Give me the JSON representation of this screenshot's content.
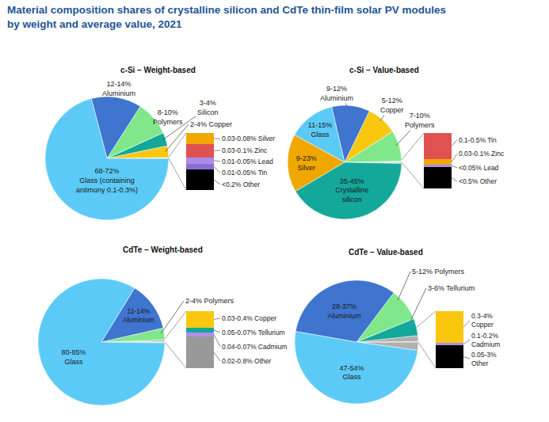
{
  "title": "Material composition shares of crystalline silicon and CdTe thin-film solar PV modules\nby weight and average value, 2021",
  "chart_data": [
    {
      "type": "pie",
      "title": "c-Si – Weight-based",
      "data_labels": true,
      "categories": [
        "Copper",
        "Silicon",
        "Polymers",
        "Aluminium",
        "Glass"
      ],
      "values": [
        3,
        3.5,
        9,
        13,
        70
      ],
      "value_labels": [
        "2-4% Copper",
        "3-4%\nSilicon",
        "8-10%\nPolymers",
        "12-14%\nAluminium",
        "68-72%\nGlass (containing\nantimony 0.1-0.3%)"
      ],
      "colors": [
        "#f9c80e",
        "#14a89a",
        "#80e88a",
        "#3f74cf",
        "#5ccaf6"
      ],
      "callout": {
        "type": "bar",
        "stacked": true,
        "tick_labels": false,
        "ylim": [
          0,
          0.28
        ],
        "categories": [
          "Silver",
          "Zinc",
          "Lead",
          "Tin",
          "Other"
        ],
        "values": [
          0.055,
          0.065,
          0.03,
          0.03,
          0.1
        ],
        "value_labels": [
          "0.03-0.08% Silver",
          "0.03-0.1% Zinc",
          "0.01-0.05% Lead",
          "0.01-0.05% Tin",
          "<0.2% Other"
        ],
        "colors": [
          "#f0a800",
          "#e05252",
          "#a98de6",
          "#8c6fd6",
          "#000000"
        ]
      }
    },
    {
      "type": "pie",
      "title": "c-Si – Value-based",
      "data_labels": true,
      "categories": [
        "Polymers",
        "Copper",
        "Aluminium",
        "Glass",
        "Silver",
        "Crystalline silicon"
      ],
      "values": [
        8.5,
        8.5,
        10.5,
        13,
        16,
        40
      ],
      "value_labels": [
        "7-10%\nPolymers",
        "5-12%\nCopper",
        "9-12%\nAluminium",
        "11-15%\nGlass",
        "9-23%\nSilver",
        "35-45%\nCrystalline\nsilicon"
      ],
      "colors": [
        "#80e88a",
        "#f9c80e",
        "#3f74cf",
        "#5ccaf6",
        "#f0a800",
        "#14a89a"
      ],
      "callout": {
        "type": "bar",
        "stacked": true,
        "tick_labels": false,
        "ylim": [
          0,
          0.64
        ],
        "categories": [
          "Tin",
          "Zinc",
          "Lead",
          "Other"
        ],
        "values": [
          0.3,
          0.065,
          0.025,
          0.25
        ],
        "value_labels": [
          "0.1-0.5% Tin",
          "0.03-0.1% Zinc",
          "<0.05% Lead",
          "<0.5% Other"
        ],
        "colors": [
          "#e05252",
          "#f0a800",
          "#a98de6",
          "#000000"
        ]
      }
    },
    {
      "type": "pie",
      "title": "CdTe – Weight-based",
      "data_labels": true,
      "categories": [
        "Polymers",
        "Aluminium",
        "Glass"
      ],
      "values": [
        3,
        12.5,
        82.5
      ],
      "value_labels": [
        "2-4% Polymers",
        "11-14%\nAluminium",
        "80-85%\nGlass"
      ],
      "colors": [
        "#80e88a",
        "#3f74cf",
        "#5ccaf6"
      ],
      "callout": {
        "type": "bar",
        "stacked": true,
        "tick_labels": false,
        "ylim": [
          0,
          0.74
        ],
        "categories": [
          "Copper",
          "Tellurium",
          "Cadmium",
          "Other"
        ],
        "values": [
          0.215,
          0.06,
          0.055,
          0.41
        ],
        "value_labels": [
          "0.03-0.4% Copper",
          "0.05-0.07% Tellurium",
          "0.04-0.07% Cadmium",
          "0.02-0.8% Other"
        ],
        "colors": [
          "#f9c80e",
          "#14a89a",
          "#b48ee6",
          "#999999"
        ]
      }
    },
    {
      "type": "pie",
      "title": "CdTe – Value-based",
      "data_labels": true,
      "categories": [
        "Tellurium",
        "Polymers",
        "Aluminium",
        "Glass"
      ],
      "values": [
        4.5,
        8.5,
        32.5,
        50.5
      ],
      "value_labels": [
        "3-6% Tellurium",
        "5-12% Polymers",
        "28-37%\nAluminium",
        "47-54%\nGlass"
      ],
      "colors": [
        "#14a89a",
        "#80e88a",
        "#3f74cf",
        "#5ccaf6"
      ],
      "callout": {
        "type": "bar",
        "stacked": true,
        "tick_labels": false,
        "ylim": [
          0,
          3.825
        ],
        "categories": [
          "Copper",
          "Cadmium",
          "Other"
        ],
        "values": [
          2.15,
          0.15,
          1.525
        ],
        "value_labels": [
          "0.3-4%\nCopper",
          "0.1-0.2%\nCadmium",
          "0.05-3%\nOther"
        ],
        "colors": [
          "#f9c80e",
          "#b48ee6",
          "#000000"
        ]
      }
    }
  ]
}
